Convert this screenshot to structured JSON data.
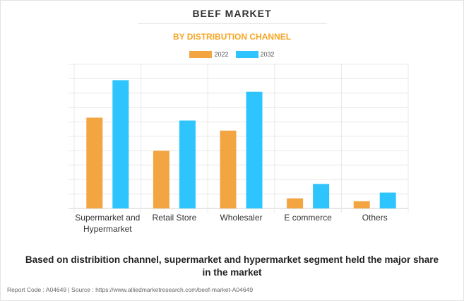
{
  "header": {
    "title": "BEEF MARKET",
    "subtitle": "BY DISTRIBUTION CHANNEL"
  },
  "legend": {
    "items": [
      {
        "label": "2022",
        "color": "#f2a541"
      },
      {
        "label": "2032",
        "color": "#2ec5ff"
      }
    ]
  },
  "chart_data": {
    "type": "bar",
    "categories": [
      "Supermarket and Hypermarket",
      "Retail Store",
      "Wholesaler",
      "E commerce",
      "Others"
    ],
    "category_label_lines": [
      [
        "Supermarket and",
        "Hypermarket"
      ],
      [
        "Retail Store"
      ],
      [
        "Wholesaler"
      ],
      [
        "E commerce"
      ],
      [
        "Others"
      ]
    ],
    "series": [
      {
        "name": "2022",
        "color": "#f2a541",
        "values": [
          6.3,
          4.0,
          5.4,
          0.7,
          0.5
        ]
      },
      {
        "name": "2032",
        "color": "#2ec5ff",
        "values": [
          8.9,
          6.1,
          8.1,
          1.7,
          1.1
        ]
      }
    ],
    "ylim": [
      0,
      10
    ],
    "grid": true,
    "legend_position": "top-center",
    "xlabel": "",
    "ylabel": ""
  },
  "caption": {
    "line1": "Based on distribition channel, supermarket and hypermarket segment held the major share",
    "line2": "in the market"
  },
  "footer": {
    "text": "Report Code : A04649  |  Source : https://www.alliedmarketresearch.com/beef-market-A04649"
  }
}
